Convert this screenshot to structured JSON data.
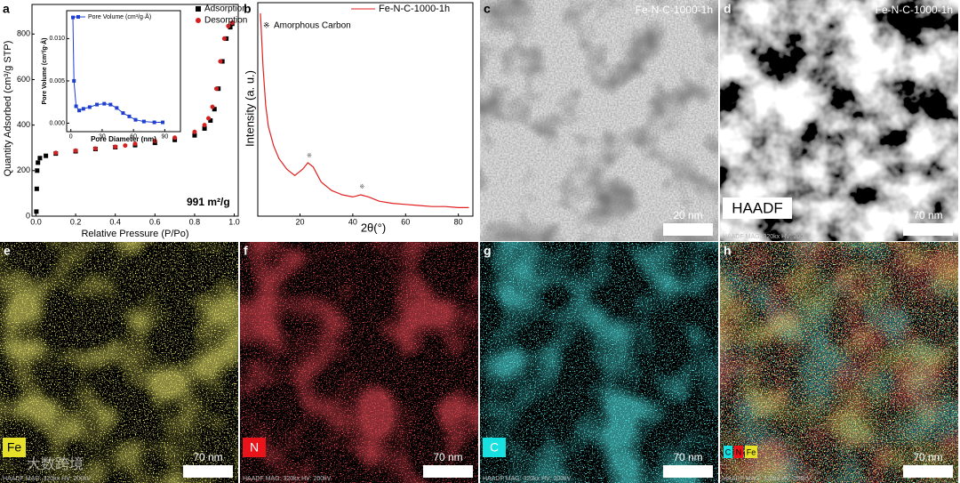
{
  "chart_data": [
    {
      "type": "scatter",
      "panel": "a",
      "xlabel": "Relative Pressure (P/Po)",
      "ylabel": "Quantity Adsorbed (cm³/g STP)",
      "annotation": "991 m²/g",
      "xlim": [
        -0.02,
        1.02
      ],
      "ylim": [
        0,
        930
      ],
      "xticks": [
        {
          "value": 0,
          "label": "0.0"
        },
        {
          "value": 0.2,
          "label": "0.2"
        },
        {
          "value": 0.4,
          "label": "0.4"
        },
        {
          "value": 0.6,
          "label": "0.6"
        },
        {
          "value": 0.8,
          "label": "0.8"
        },
        {
          "value": 1,
          "label": "1.0"
        }
      ],
      "yticks": [
        0,
        200,
        400,
        600,
        800
      ],
      "legend": "top right",
      "series": [
        {
          "name": "Adsorption",
          "color": "#000000",
          "marker": "square",
          "x": [
            0.002,
            0.004,
            0.006,
            0.01,
            0.02,
            0.05,
            0.1,
            0.2,
            0.3,
            0.4,
            0.5,
            0.6,
            0.7,
            0.8,
            0.85,
            0.88,
            0.9,
            0.92,
            0.94,
            0.96,
            0.98,
            0.99
          ],
          "values": [
            20,
            120,
            200,
            235,
            255,
            265,
            275,
            285,
            295,
            303,
            312,
            322,
            335,
            355,
            385,
            420,
            470,
            560,
            680,
            780,
            830,
            845
          ]
        },
        {
          "name": "Desorption",
          "color": "#d42020",
          "marker": "circle",
          "x": [
            0.99,
            0.97,
            0.95,
            0.93,
            0.91,
            0.89,
            0.87,
            0.85,
            0.8,
            0.7,
            0.6,
            0.5,
            0.45,
            0.4,
            0.3,
            0.2,
            0.1
          ],
          "values": [
            850,
            835,
            780,
            680,
            560,
            480,
            430,
            400,
            370,
            345,
            330,
            318,
            310,
            305,
            297,
            288,
            278
          ]
        }
      ]
    },
    {
      "type": "line",
      "xlabel": "Pore Diameter (nm)",
      "ylabel": "Pore Volume (cm³/g·Å)",
      "xlim": [
        -4,
        105
      ],
      "ylim": [
        -0.001,
        0.0133
      ],
      "xticks": [
        0,
        30,
        60,
        90
      ],
      "yticks": [
        {
          "value": 0,
          "label": "0.000"
        },
        {
          "value": 0.005,
          "label": "0.005"
        },
        {
          "value": 0.01,
          "label": "0.010"
        }
      ],
      "legend": "top left",
      "series": [
        {
          "name": "Pore Volume (cm³/g·Å)",
          "color": "#1f3fd0",
          "marker": "square",
          "x": [
            2,
            3,
            5,
            8,
            12,
            18,
            25,
            32,
            38,
            44,
            50,
            56,
            62,
            70,
            80,
            88
          ],
          "values": [
            0.0125,
            0.005,
            0.002,
            0.0015,
            0.0017,
            0.0019,
            0.0022,
            0.0023,
            0.0022,
            0.0018,
            0.0012,
            0.0008,
            0.0004,
            0.0002,
            0.0001,
            0.0001
          ]
        }
      ]
    },
    {
      "type": "line",
      "panel": "b",
      "xlabel": "2θ(°)",
      "ylabel": "Intensity (a. u.)",
      "annotation": "Amorphous Carbon",
      "peak_marker": "※",
      "peak_x": [
        23.5,
        43.5
      ],
      "xlim": [
        4,
        85.5
      ],
      "ylim": [
        0,
        100
      ],
      "xticks": [
        20,
        40,
        60,
        80
      ],
      "legend": "top right",
      "series": [
        {
          "name": "Fe-N-C-1000-1h",
          "color": "#e02020",
          "x": [
            5,
            6,
            7,
            8,
            10,
            12,
            15,
            18,
            21,
            23,
            25,
            28,
            32,
            36,
            40,
            43,
            46,
            50,
            55,
            60,
            65,
            70,
            75,
            80,
            84
          ],
          "values": [
            95,
            70,
            52,
            42,
            33,
            27,
            22,
            19,
            22,
            25,
            23,
            16,
            12,
            10,
            9,
            10,
            9,
            7,
            6,
            5.5,
            5,
            4.5,
            4.5,
            4,
            4
          ]
        }
      ]
    }
  ],
  "images": [
    {
      "panel": "c",
      "caption": "Fe-N-C-1000-1h",
      "scale_bar": "20 nm"
    },
    {
      "panel": "d",
      "caption": "Fe-N-C-1000-1h",
      "label": "HAADF",
      "scale_bar": "70 nm",
      "footer": "HAADF  MAG: 320kx  HV: 200kV"
    },
    {
      "panel": "e",
      "label": "Fe",
      "color": "#e6e02a",
      "scale_bar": "70 nm",
      "footer": "HAADF  MAG: 320kx  HV: 200kV",
      "watermark": "大数跨境"
    },
    {
      "panel": "f",
      "label": "N",
      "color": "#e8141a",
      "scale_bar": "70 nm",
      "footer": "HAADF  MAG: 320kx  HV: 200kV"
    },
    {
      "panel": "g",
      "label": "C",
      "color": "#19e0e0",
      "scale_bar": "70 nm",
      "footer": "HAADF  MAG: 320kx  HV: 200kV"
    },
    {
      "panel": "h",
      "legend": [
        {
          "text": "C",
          "color": "#19e0e0"
        },
        {
          "text": "N",
          "color": "#e8141a"
        },
        {
          "text": "Fe",
          "color": "#e6e02a"
        }
      ],
      "scale_bar": "70 nm",
      "footer": "HAADF  MAG: 320kx  HV: 200kV"
    }
  ]
}
